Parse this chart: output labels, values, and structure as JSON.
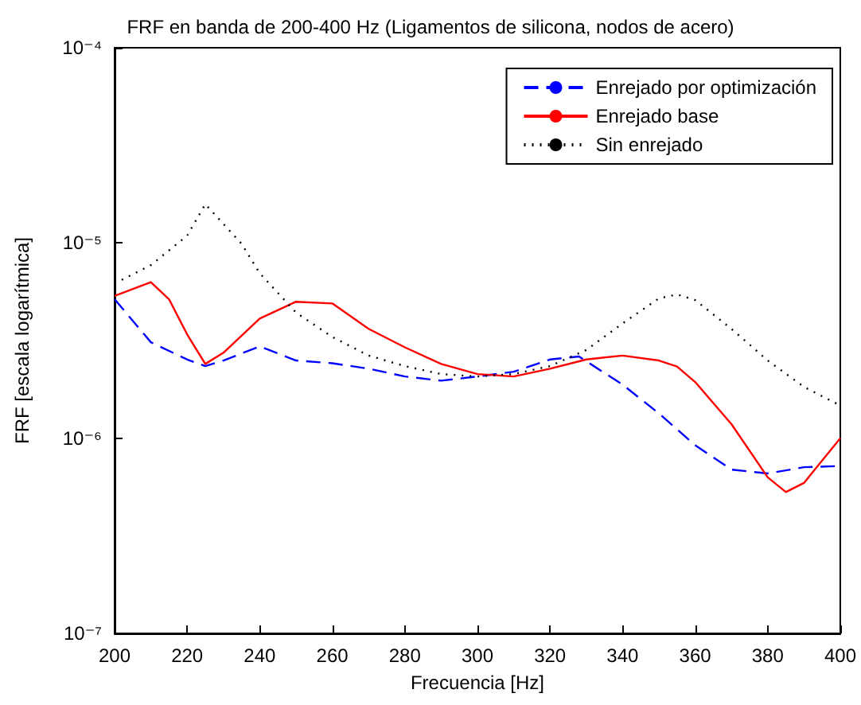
{
  "chart_data": {
    "type": "line",
    "title": "FRF en banda de 200-400 Hz (Ligamentos de silicona, nodos de acero)",
    "xlabel": "Frecuencia [Hz]",
    "ylabel": "FRF [escala logarítmica]",
    "log": "y",
    "grid": false,
    "legend": "top right",
    "marker": "none",
    "xlim": [
      200,
      400
    ],
    "xticks": [
      200,
      220,
      240,
      260,
      280,
      300,
      320,
      340,
      360,
      380,
      400
    ],
    "ylim": [
      1e-07,
      0.0001
    ],
    "yticks": [
      {
        "value": 1e-07,
        "label": "10⁻⁷"
      },
      {
        "value": 1e-06,
        "label": "10⁻⁶"
      },
      {
        "value": 1e-05,
        "label": "10⁻⁵"
      },
      {
        "value": 0.0001,
        "label": "10⁻⁴"
      }
    ],
    "series": [
      {
        "name": "Enrejado por optimización",
        "color": "#0000ff",
        "line_style": "dashed",
        "x": [
          200,
          210,
          220,
          225,
          230,
          240,
          250,
          260,
          270,
          280,
          290,
          300,
          310,
          320,
          328,
          340,
          350,
          360,
          370,
          380,
          390,
          400
        ],
        "values": [
          5.15e-06,
          3.1e-06,
          2.53e-06,
          2.34e-06,
          2.5e-06,
          2.95e-06,
          2.5e-06,
          2.42e-06,
          2.27e-06,
          2.07e-06,
          1.97e-06,
          2.07e-06,
          2.19e-06,
          2.53e-06,
          2.62e-06,
          1.88e-06,
          1.34e-06,
          9.2e-07,
          6.9e-07,
          6.6e-07,
          7.1e-07,
          7.2e-07
        ]
      },
      {
        "name": "Enrejado base",
        "color": "#ff0000",
        "line_style": "solid",
        "x": [
          200,
          210,
          215,
          220,
          225,
          230,
          240,
          250,
          260,
          270,
          280,
          290,
          300,
          310,
          320,
          330,
          340,
          350,
          355,
          360,
          370,
          380,
          385,
          390,
          400
        ],
        "values": [
          5.35e-06,
          6.3e-06,
          5.15e-06,
          3.4e-06,
          2.4e-06,
          2.74e-06,
          4.1e-06,
          5e-06,
          4.9e-06,
          3.63e-06,
          2.92e-06,
          2.4e-06,
          2.13e-06,
          2.07e-06,
          2.27e-06,
          2.53e-06,
          2.65e-06,
          2.5e-06,
          2.33e-06,
          1.94e-06,
          1.18e-06,
          6.3e-07,
          5.3e-07,
          5.9e-07,
          1e-06
        ]
      },
      {
        "name": "Sin enrejado",
        "color": "#000000",
        "line_style": "dotted",
        "x": [
          200,
          210,
          220,
          225,
          235,
          240,
          250,
          260,
          270,
          280,
          290,
          300,
          310,
          320,
          330,
          340,
          350,
          355,
          360,
          370,
          380,
          390,
          400
        ],
        "values": [
          6.2e-06,
          7.7e-06,
          1.09e-05,
          1.58e-05,
          9.9e-06,
          7e-06,
          4.4e-06,
          3.3e-06,
          2.65e-06,
          2.34e-06,
          2.13e-06,
          2.07e-06,
          2.13e-06,
          2.34e-06,
          2.83e-06,
          3.87e-06,
          5.2e-06,
          5.45e-06,
          5.1e-06,
          3.63e-06,
          2.5e-06,
          1.83e-06,
          1.47e-06
        ]
      }
    ]
  }
}
